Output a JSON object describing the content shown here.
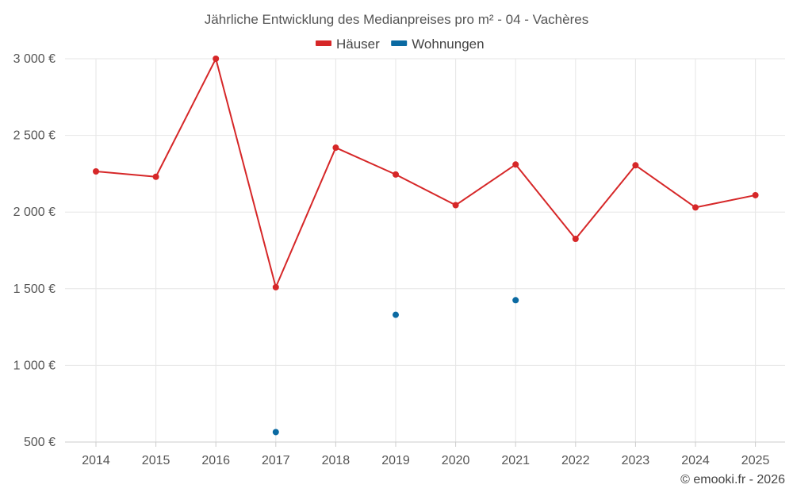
{
  "chart_data": {
    "type": "line",
    "title": "Jährliche Entwicklung des Medianpreises pro m² - 04 - Vachères",
    "xlabel": "",
    "ylabel": "",
    "categories": [
      "2014",
      "2015",
      "2016",
      "2017",
      "2018",
      "2019",
      "2020",
      "2021",
      "2022",
      "2023",
      "2024",
      "2025"
    ],
    "ylim": [
      500,
      3000
    ],
    "yticks": [
      500,
      1000,
      1500,
      2000,
      2500,
      3000
    ],
    "ytick_labels": [
      "500 €",
      "1 000 €",
      "1 500 €",
      "2 000 €",
      "2 500 €",
      "3 000 €"
    ],
    "grid": true,
    "legend_position": "top-center",
    "series": [
      {
        "name": "Häuser",
        "color": "#d62728",
        "style": "line",
        "values": [
          2265,
          2230,
          3000,
          1510,
          2420,
          2245,
          2045,
          2310,
          1825,
          2305,
          2030,
          2110
        ]
      },
      {
        "name": "Wohnungen",
        "color": "#0b6aa2",
        "style": "points",
        "values": [
          null,
          null,
          null,
          565,
          null,
          1330,
          null,
          1425,
          null,
          null,
          null,
          null
        ]
      }
    ]
  },
  "credit": "© emooki.fr - 2026"
}
